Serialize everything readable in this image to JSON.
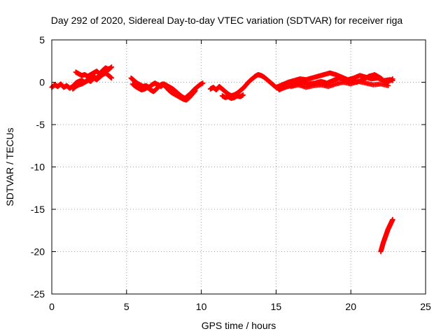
{
  "chart_data": {
    "type": "scatter",
    "title": "Day 292 of 2020, Sidereal Day-to-day VTEC variation (SDTVAR) for receiver riga",
    "xlabel": "GPS time / hours",
    "ylabel": "SDTVAR / TECUs",
    "xlim": [
      0,
      25
    ],
    "ylim": [
      -25,
      5
    ],
    "xticks": [
      "0",
      "5",
      "10",
      "15",
      "20",
      "25"
    ],
    "yticks": [
      "5",
      "0",
      "-5",
      "-10",
      "-15",
      "-20",
      "-25"
    ],
    "grid": true,
    "marker": "+",
    "color": "#ff0000",
    "series": [
      {
        "name": "riga",
        "segments": [
          {
            "x": [
              0.0,
              0.2,
              0.4,
              0.6,
              0.8,
              1.0,
              1.2,
              1.4,
              1.6,
              1.8,
              2.0,
              2.2,
              2.4,
              2.6,
              2.8,
              3.0,
              3.2,
              3.4,
              3.6,
              3.8,
              4.0
            ],
            "y": [
              -0.6,
              -0.3,
              -0.5,
              -0.2,
              -0.6,
              -0.4,
              -0.7,
              -0.5,
              -0.1,
              0.1,
              0.2,
              0.0,
              0.3,
              0.1,
              0.5,
              0.3,
              0.6,
              0.9,
              1.1,
              0.8,
              0.5
            ]
          },
          {
            "x": [
              1.6,
              1.8,
              2.0,
              2.2,
              2.4,
              2.6,
              2.8,
              3.0,
              3.2,
              3.4,
              3.6,
              3.8,
              4.0
            ],
            "y": [
              1.2,
              1.0,
              0.8,
              0.9,
              0.7,
              0.9,
              1.1,
              1.3,
              1.0,
              1.4,
              1.7,
              1.5,
              1.8
            ]
          },
          {
            "x": [
              1.4,
              1.6,
              1.8,
              2.0,
              2.2,
              2.4,
              2.6,
              2.8,
              3.0,
              3.2,
              3.4,
              3.6,
              3.8
            ],
            "y": [
              -0.8,
              -0.5,
              -0.3,
              -0.2,
              0.0,
              0.2,
              0.4,
              0.6,
              0.5,
              0.8,
              1.0,
              1.3,
              1.6
            ]
          },
          {
            "x": [
              5.3,
              5.5,
              5.7,
              5.9,
              6.1,
              6.3,
              6.5,
              6.7,
              6.9,
              7.1,
              7.3,
              7.5,
              7.7,
              7.9,
              8.1,
              8.3,
              8.5,
              8.7,
              8.9,
              9.1,
              9.3,
              9.5,
              9.7,
              9.9,
              10.1
            ],
            "y": [
              0.5,
              0.2,
              -0.1,
              -0.3,
              -0.5,
              -0.4,
              -0.6,
              -0.3,
              -0.1,
              -0.3,
              -0.5,
              -0.2,
              -0.4,
              -0.6,
              -0.8,
              -1.1,
              -1.4,
              -1.7,
              -1.9,
              -1.6,
              -1.3,
              -0.9,
              -0.6,
              -0.3,
              -0.1
            ]
          },
          {
            "x": [
              5.4,
              5.6,
              5.8,
              6.0,
              6.2,
              6.4,
              6.6,
              6.8,
              7.0,
              7.2,
              7.4,
              7.6,
              7.8,
              8.0,
              8.2,
              8.4,
              8.6,
              8.8,
              9.0,
              9.2,
              9.4,
              9.6
            ],
            "y": [
              -0.2,
              -0.5,
              -0.7,
              -0.9,
              -0.8,
              -0.6,
              -0.9,
              -1.1,
              -0.8,
              -0.4,
              -0.2,
              -0.5,
              -0.9,
              -1.2,
              -1.4,
              -1.6,
              -1.8,
              -2.0,
              -2.1,
              -1.8,
              -1.4,
              -1.0
            ]
          },
          {
            "x": [
              10.6,
              10.8,
              11.0,
              11.2,
              11.4,
              11.6,
              11.8,
              12.0,
              12.2,
              12.4,
              12.6,
              12.8,
              13.0,
              13.2,
              13.4,
              13.6,
              13.8,
              14.0,
              14.2,
              14.4,
              14.6,
              14.8,
              15.0,
              15.2
            ],
            "y": [
              -0.8,
              -0.6,
              -0.9,
              -0.5,
              -0.8,
              -1.1,
              -1.4,
              -1.6,
              -1.5,
              -1.3,
              -1.0,
              -0.7,
              -0.3,
              0.1,
              0.4,
              0.7,
              0.9,
              0.8,
              0.6,
              0.3,
              0.0,
              -0.3,
              -0.6,
              -0.8
            ]
          },
          {
            "x": [
              11.4,
              11.6,
              11.8,
              12.0,
              12.2,
              12.4,
              12.6,
              12.8
            ],
            "y": [
              -1.6,
              -1.8,
              -1.7,
              -1.9,
              -1.8,
              -1.6,
              -1.7,
              -1.5
            ]
          },
          {
            "x": [
              15.0,
              15.4,
              15.8,
              16.2,
              16.6,
              17.0,
              17.4,
              17.8,
              18.2,
              18.6,
              19.0,
              19.4,
              19.8,
              20.2,
              20.6,
              21.0,
              21.4,
              21.8,
              22.2,
              22.6,
              22.8
            ],
            "y": [
              -0.6,
              -0.3,
              0.0,
              0.2,
              0.4,
              0.3,
              0.5,
              0.7,
              0.9,
              1.1,
              0.9,
              0.6,
              0.3,
              0.5,
              0.8,
              0.6,
              0.4,
              0.5,
              0.2,
              0.3,
              0.2
            ]
          },
          {
            "x": [
              15.2,
              15.6,
              16.0,
              16.4,
              16.8,
              17.2,
              17.6,
              18.0,
              18.4,
              18.8,
              19.2,
              19.6,
              20.0,
              20.4,
              20.8,
              21.2,
              21.6,
              22.0,
              22.4,
              22.8
            ],
            "y": [
              -0.9,
              -0.6,
              -0.4,
              -0.2,
              0.0,
              -0.2,
              -0.1,
              0.1,
              -0.1,
              0.2,
              0.5,
              0.3,
              0.1,
              0.0,
              0.3,
              0.7,
              0.9,
              0.5,
              -0.1,
              0.4
            ]
          },
          {
            "x": [
              16.0,
              16.5,
              17.0,
              17.5,
              18.0,
              18.5,
              19.0,
              19.5,
              20.0,
              20.5,
              21.0,
              21.5,
              22.0,
              22.5
            ],
            "y": [
              -0.5,
              -0.3,
              -0.6,
              -0.4,
              -0.3,
              -0.5,
              -0.2,
              0.0,
              -0.2,
              0.1,
              -0.1,
              -0.3,
              -0.2,
              -0.4
            ]
          },
          {
            "x": [
              22.0,
              22.08,
              22.16,
              22.24,
              22.32,
              22.4,
              22.48,
              22.56,
              22.64,
              22.72,
              22.8
            ],
            "y": [
              -20.0,
              -19.5,
              -19.0,
              -18.6,
              -18.2,
              -17.8,
              -17.4,
              -17.1,
              -16.8,
              -16.5,
              -16.2
            ]
          }
        ]
      }
    ]
  }
}
